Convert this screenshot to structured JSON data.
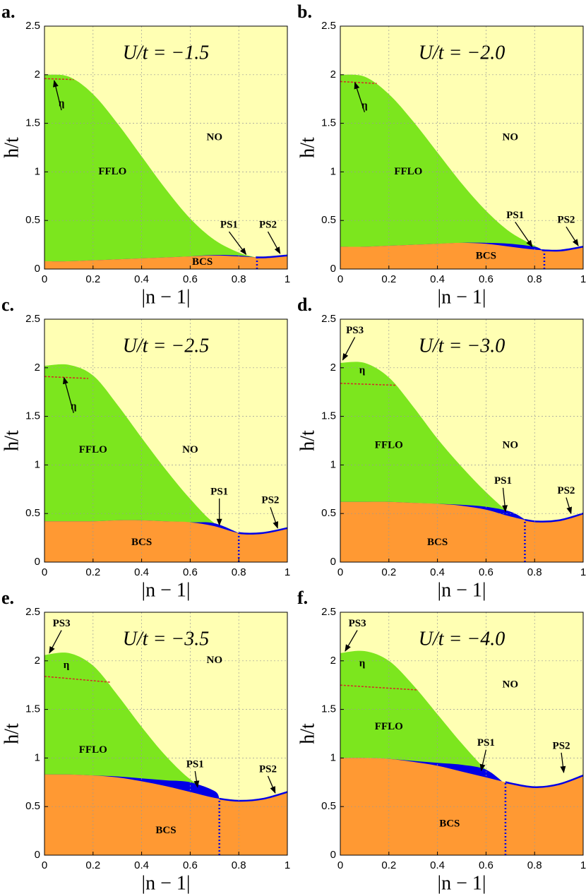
{
  "chart_data": [
    {
      "type": "phase",
      "label": "a.",
      "title": "U/t = −1.5",
      "x_label": "|n − 1|",
      "y_label": "h/t",
      "xlim": [
        0,
        1
      ],
      "ylim": [
        0,
        2.5
      ],
      "xticks": [
        0,
        0.2,
        0.4,
        0.6,
        0.8,
        1
      ],
      "yticks": [
        0,
        0.5,
        1,
        1.5,
        2,
        2.5
      ],
      "grid": true,
      "background": "#ffffb3",
      "series": [
        {
          "name": "FFLO",
          "color": "#7ce61e",
          "x": [
            0,
            0.1,
            0.2,
            0.3,
            0.4,
            0.5,
            0.6,
            0.7,
            0.8,
            0.87
          ],
          "values": [
            2.0,
            1.98,
            1.8,
            1.5,
            1.16,
            0.82,
            0.52,
            0.3,
            0.17,
            0.12
          ]
        },
        {
          "name": "PS1",
          "color": "#0000e6",
          "x": [
            0,
            0.1,
            0.2,
            0.3,
            0.4,
            0.5,
            0.6,
            0.7,
            0.8,
            0.87
          ],
          "values": [
            0.08,
            0.08,
            0.09,
            0.1,
            0.11,
            0.12,
            0.13,
            0.145,
            0.14,
            0.12
          ]
        },
        {
          "name": "BCS",
          "color": "#ff9933",
          "x": [
            0,
            0.1,
            0.2,
            0.3,
            0.4,
            0.5,
            0.6,
            0.7,
            0.8,
            0.9,
            1
          ],
          "values": [
            0.08,
            0.08,
            0.09,
            0.1,
            0.11,
            0.12,
            0.13,
            0.14,
            0.13,
            0.12,
            0.14
          ]
        },
        {
          "name": "η",
          "color": "#d62728",
          "x": [
            0,
            0.12
          ],
          "values": [
            1.96,
            1.95
          ]
        }
      ],
      "divider_x": 0.875,
      "annotations": [
        "NO",
        "PS2"
      ]
    },
    {
      "type": "phase",
      "label": "b.",
      "title": "U/t = −2.0",
      "x_label": "|n − 1|",
      "y_label": "h/t",
      "xlim": [
        0,
        1
      ],
      "ylim": [
        0,
        2.5
      ],
      "xticks": [
        0,
        0.2,
        0.4,
        0.6,
        0.8,
        1
      ],
      "yticks": [
        0,
        0.5,
        1,
        1.5,
        2,
        2.5
      ],
      "grid": true,
      "background": "#ffffb3",
      "series": [
        {
          "name": "FFLO",
          "color": "#7ce61e",
          "x": [
            0,
            0.1,
            0.2,
            0.3,
            0.4,
            0.5,
            0.6,
            0.7,
            0.8,
            0.83
          ],
          "values": [
            2.0,
            1.98,
            1.8,
            1.52,
            1.2,
            0.88,
            0.6,
            0.38,
            0.24,
            0.2
          ]
        },
        {
          "name": "PS1",
          "color": "#0000e6",
          "x": [
            0,
            0.1,
            0.2,
            0.3,
            0.4,
            0.5,
            0.6,
            0.7,
            0.8,
            0.83
          ],
          "values": [
            0.23,
            0.23,
            0.24,
            0.25,
            0.26,
            0.27,
            0.27,
            0.26,
            0.23,
            0.2
          ]
        },
        {
          "name": "BCS",
          "color": "#ff9933",
          "x": [
            0,
            0.1,
            0.2,
            0.3,
            0.4,
            0.5,
            0.6,
            0.7,
            0.8,
            0.9,
            1
          ],
          "values": [
            0.23,
            0.23,
            0.24,
            0.25,
            0.26,
            0.27,
            0.26,
            0.23,
            0.2,
            0.19,
            0.23
          ]
        },
        {
          "name": "η",
          "color": "#d62728",
          "x": [
            0,
            0.15
          ],
          "values": [
            1.93,
            1.91
          ]
        }
      ],
      "divider_x": 0.84,
      "annotations": [
        "NO",
        "PS2"
      ]
    },
    {
      "type": "phase",
      "label": "c.",
      "title": "U/t = −2.5",
      "x_label": "|n − 1|",
      "y_label": "h/t",
      "xlim": [
        0,
        1
      ],
      "ylim": [
        0,
        2.5
      ],
      "xticks": [
        0,
        0.2,
        0.4,
        0.6,
        0.8,
        1
      ],
      "yticks": [
        0,
        0.5,
        1,
        1.5,
        2,
        2.5
      ],
      "grid": true,
      "background": "#ffffb3",
      "series": [
        {
          "name": "FFLO",
          "color": "#7ce61e",
          "x": [
            0,
            0.1,
            0.2,
            0.3,
            0.4,
            0.5,
            0.6,
            0.7,
            0.8
          ],
          "values": [
            2.02,
            2.03,
            1.92,
            1.62,
            1.28,
            0.95,
            0.65,
            0.4,
            0.3
          ]
        },
        {
          "name": "PS1",
          "color": "#0000e6",
          "x": [
            0,
            0.1,
            0.2,
            0.3,
            0.4,
            0.5,
            0.6,
            0.7,
            0.8
          ],
          "values": [
            0.42,
            0.42,
            0.42,
            0.43,
            0.43,
            0.42,
            0.41,
            0.4,
            0.3
          ]
        },
        {
          "name": "BCS",
          "color": "#ff9933",
          "x": [
            0,
            0.1,
            0.2,
            0.3,
            0.4,
            0.5,
            0.6,
            0.7,
            0.8,
            0.9,
            1
          ],
          "values": [
            0.42,
            0.42,
            0.42,
            0.43,
            0.43,
            0.42,
            0.41,
            0.37,
            0.3,
            0.3,
            0.35
          ]
        },
        {
          "name": "η",
          "color": "#d62728",
          "x": [
            0,
            0.18
          ],
          "values": [
            1.91,
            1.89
          ]
        }
      ],
      "divider_x": 0.8,
      "annotations": [
        "NO",
        "PS2"
      ]
    },
    {
      "type": "phase",
      "label": "d.",
      "title": "U/t = −3.0",
      "x_label": "|n − 1|",
      "y_label": "h/t",
      "xlim": [
        0,
        1
      ],
      "ylim": [
        0,
        2.5
      ],
      "xticks": [
        0,
        0.2,
        0.4,
        0.6,
        0.8,
        1
      ],
      "yticks": [
        0,
        0.5,
        1,
        1.5,
        2,
        2.5
      ],
      "grid": true,
      "background": "#ffffb3",
      "series": [
        {
          "name": "FFLO",
          "color": "#7ce61e",
          "x": [
            0,
            0.1,
            0.2,
            0.3,
            0.4,
            0.5,
            0.6,
            0.7,
            0.76
          ],
          "values": [
            2.05,
            2.05,
            1.9,
            1.6,
            1.27,
            0.98,
            0.72,
            0.5,
            0.44
          ]
        },
        {
          "name": "PS1",
          "color": "#0000e6",
          "x": [
            0,
            0.1,
            0.2,
            0.3,
            0.4,
            0.5,
            0.6,
            0.7,
            0.76
          ],
          "values": [
            0.62,
            0.62,
            0.62,
            0.61,
            0.6,
            0.59,
            0.57,
            0.52,
            0.44
          ]
        },
        {
          "name": "BCS",
          "color": "#ff9933",
          "x": [
            0,
            0.1,
            0.2,
            0.3,
            0.4,
            0.5,
            0.6,
            0.7,
            0.8,
            0.9,
            1
          ],
          "values": [
            0.62,
            0.62,
            0.62,
            0.61,
            0.6,
            0.58,
            0.54,
            0.47,
            0.42,
            0.43,
            0.5
          ]
        },
        {
          "name": "η",
          "color": "#d62728",
          "x": [
            0,
            0.23
          ],
          "values": [
            1.84,
            1.82
          ]
        }
      ],
      "divider_x": 0.76,
      "annotations": [
        "NO",
        "PS2",
        "PS3"
      ]
    },
    {
      "type": "phase",
      "label": "e.",
      "title": "U/t = −3.5",
      "x_label": "|n − 1|",
      "y_label": "h/t",
      "xlim": [
        0,
        1
      ],
      "ylim": [
        0,
        2.5
      ],
      "xticks": [
        0,
        0.2,
        0.4,
        0.6,
        0.8,
        1
      ],
      "yticks": [
        0,
        0.5,
        1,
        1.5,
        2,
        2.5
      ],
      "grid": true,
      "background": "#ffffb3",
      "series": [
        {
          "name": "FFLO",
          "color": "#7ce61e",
          "x": [
            0,
            0.1,
            0.2,
            0.3,
            0.4,
            0.5,
            0.6,
            0.7,
            0.72
          ],
          "values": [
            2.06,
            2.08,
            1.95,
            1.65,
            1.32,
            1.02,
            0.78,
            0.62,
            0.58
          ]
        },
        {
          "name": "PS1",
          "color": "#0000e6",
          "x": [
            0,
            0.1,
            0.2,
            0.3,
            0.4,
            0.5,
            0.6,
            0.7,
            0.72
          ],
          "values": [
            0.83,
            0.83,
            0.82,
            0.81,
            0.79,
            0.77,
            0.75,
            0.66,
            0.58
          ]
        },
        {
          "name": "BCS",
          "color": "#ff9933",
          "x": [
            0,
            0.1,
            0.2,
            0.3,
            0.4,
            0.5,
            0.6,
            0.7,
            0.8,
            0.9,
            1
          ],
          "values": [
            0.83,
            0.83,
            0.82,
            0.8,
            0.76,
            0.71,
            0.65,
            0.59,
            0.56,
            0.58,
            0.65
          ]
        },
        {
          "name": "η",
          "color": "#d62728",
          "x": [
            0,
            0.27
          ],
          "values": [
            1.84,
            1.78
          ]
        }
      ],
      "divider_x": 0.72,
      "annotations": [
        "NO",
        "PS2",
        "PS3"
      ]
    },
    {
      "type": "phase",
      "label": "f.",
      "title": "U/t = −4.0",
      "x_label": "|n − 1|",
      "y_label": "h/t",
      "xlim": [
        0,
        1
      ],
      "ylim": [
        0,
        2.5
      ],
      "xticks": [
        0,
        0.2,
        0.4,
        0.6,
        0.8,
        1
      ],
      "yticks": [
        0,
        0.5,
        1,
        1.5,
        2,
        2.5
      ],
      "grid": true,
      "background": "#ffffb3",
      "series": [
        {
          "name": "FFLO",
          "color": "#7ce61e",
          "x": [
            0,
            0.1,
            0.2,
            0.3,
            0.4,
            0.5,
            0.6,
            0.68
          ],
          "values": [
            2.08,
            2.1,
            2.0,
            1.75,
            1.45,
            1.15,
            0.88,
            0.73
          ]
        },
        {
          "name": "PS1",
          "color": "#0000e6",
          "x": [
            0,
            0.1,
            0.2,
            0.3,
            0.4,
            0.5,
            0.6,
            0.68
          ],
          "values": [
            1.0,
            1.0,
            0.99,
            0.97,
            0.95,
            0.93,
            0.88,
            0.73
          ]
        },
        {
          "name": "BCS",
          "color": "#ff9933",
          "x": [
            0,
            0.1,
            0.2,
            0.3,
            0.4,
            0.5,
            0.6,
            0.7,
            0.8,
            0.9,
            1
          ],
          "values": [
            1.0,
            1.0,
            0.99,
            0.96,
            0.92,
            0.86,
            0.8,
            0.74,
            0.7,
            0.73,
            0.82
          ]
        },
        {
          "name": "η",
          "color": "#d62728",
          "x": [
            0,
            0.32
          ],
          "values": [
            1.75,
            1.7
          ]
        }
      ],
      "divider_x": 0.68,
      "annotations": [
        "NO",
        "PS2",
        "PS3"
      ]
    }
  ]
}
